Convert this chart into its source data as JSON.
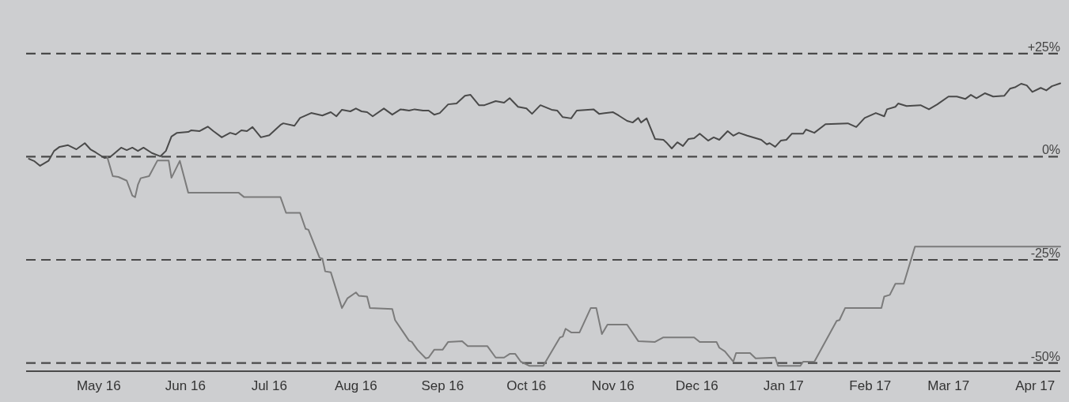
{
  "chart_data": {
    "type": "line",
    "xlim": [
      "2016-04-05",
      "2017-04-10"
    ],
    "ylim": [
      -52,
      38
    ],
    "xticks": [
      {
        "value": "2016-05-01",
        "label": "May 16"
      },
      {
        "value": "2016-06-01",
        "label": "Jun 16"
      },
      {
        "value": "2016-07-01",
        "label": "Jul 16"
      },
      {
        "value": "2016-08-01",
        "label": "Aug 16"
      },
      {
        "value": "2016-09-01",
        "label": "Sep 16"
      },
      {
        "value": "2016-10-01",
        "label": "Oct 16"
      },
      {
        "value": "2016-11-01",
        "label": "Nov 16"
      },
      {
        "value": "2016-12-01",
        "label": "Dec 16"
      },
      {
        "value": "2017-01-01",
        "label": "Jan 17"
      },
      {
        "value": "2017-02-01",
        "label": "Feb 17"
      },
      {
        "value": "2017-03-01",
        "label": "Mar 17"
      },
      {
        "value": "2017-04-01",
        "label": "Apr 17"
      }
    ],
    "yticks": [
      {
        "value": 25,
        "label": "+25%"
      },
      {
        "value": 0,
        "label": "0%"
      },
      {
        "value": -25,
        "label": "-25%"
      },
      {
        "value": -50,
        "label": "-50%"
      }
    ],
    "grid": "y",
    "series": [
      {
        "color": "#4a4a4a",
        "x": [
          "2016-04-06",
          "2016-04-08",
          "2016-04-10",
          "2016-04-13",
          "2016-04-15",
          "2016-04-17",
          "2016-04-20",
          "2016-04-23",
          "2016-04-26",
          "2016-04-28",
          "2016-04-30",
          "2016-05-03",
          "2016-05-05",
          "2016-05-09",
          "2016-05-11",
          "2016-05-13",
          "2016-05-15",
          "2016-05-17",
          "2016-05-20",
          "2016-05-23",
          "2016-05-25",
          "2016-05-27",
          "2016-05-29",
          "2016-06-02",
          "2016-06-03",
          "2016-06-06",
          "2016-06-09",
          "2016-06-11",
          "2016-06-14",
          "2016-06-17",
          "2016-06-19",
          "2016-06-21",
          "2016-06-23",
          "2016-06-25",
          "2016-06-28",
          "2016-07-01",
          "2016-07-05",
          "2016-07-06",
          "2016-07-10",
          "2016-07-12",
          "2016-07-16",
          "2016-07-20",
          "2016-07-23",
          "2016-07-25",
          "2016-07-27",
          "2016-07-30",
          "2016-08-01",
          "2016-08-03",
          "2016-08-05",
          "2016-08-07",
          "2016-08-11",
          "2016-08-14",
          "2016-08-17",
          "2016-08-20",
          "2016-08-22",
          "2016-08-25",
          "2016-08-27",
          "2016-08-29",
          "2016-08-31",
          "2016-09-03",
          "2016-09-06",
          "2016-09-09",
          "2016-09-11",
          "2016-09-14",
          "2016-09-16",
          "2016-09-20",
          "2016-09-23",
          "2016-09-25",
          "2016-09-28",
          "2016-10-01",
          "2016-10-03",
          "2016-10-06",
          "2016-10-10",
          "2016-10-12",
          "2016-10-14",
          "2016-10-17",
          "2016-10-19",
          "2016-10-25",
          "2016-10-27",
          "2016-11-01",
          "2016-11-03",
          "2016-11-06",
          "2016-11-08",
          "2016-11-10",
          "2016-11-11",
          "2016-11-13",
          "2016-11-16",
          "2016-11-19",
          "2016-11-20",
          "2016-11-22",
          "2016-11-24",
          "2016-11-26",
          "2016-11-28",
          "2016-11-30",
          "2016-12-02",
          "2016-12-05",
          "2016-12-07",
          "2016-12-09",
          "2016-12-12",
          "2016-12-14",
          "2016-12-16",
          "2016-12-19",
          "2016-12-24",
          "2016-12-26",
          "2016-12-27",
          "2016-12-29",
          "2016-12-31",
          "2017-01-02",
          "2017-01-04",
          "2017-01-08",
          "2017-01-09",
          "2017-01-12",
          "2017-01-16",
          "2017-01-24",
          "2017-01-27",
          "2017-01-30",
          "2017-02-03",
          "2017-02-06",
          "2017-02-07",
          "2017-02-10",
          "2017-02-11",
          "2017-02-14",
          "2017-02-19",
          "2017-02-22",
          "2017-02-25",
          "2017-03-01",
          "2017-03-04",
          "2017-03-07",
          "2017-03-09",
          "2017-03-11",
          "2017-03-14",
          "2017-03-17",
          "2017-03-21",
          "2017-03-23",
          "2017-03-25",
          "2017-03-27",
          "2017-03-29",
          "2017-03-31",
          "2017-04-03",
          "2017-04-05",
          "2017-04-07",
          "2017-04-10"
        ],
        "values": [
          -0.5,
          -1.1,
          -2.2,
          -1.0,
          1.4,
          2.4,
          2.8,
          1.8,
          3.3,
          1.8,
          1.0,
          -0.3,
          -0.1,
          2.2,
          1.6,
          2.2,
          1.4,
          2.2,
          0.9,
          0.1,
          1.4,
          4.9,
          5.8,
          6.0,
          6.4,
          6.2,
          7.3,
          6.2,
          4.7,
          5.8,
          5.4,
          6.4,
          6.2,
          7.2,
          4.7,
          5.2,
          7.7,
          8.1,
          7.5,
          9.4,
          10.6,
          10.0,
          10.8,
          9.8,
          11.4,
          11.0,
          11.7,
          11.0,
          10.8,
          9.8,
          11.7,
          10.2,
          11.5,
          11.2,
          11.5,
          11.2,
          11.2,
          10.2,
          10.6,
          12.7,
          12.9,
          14.8,
          15.0,
          12.5,
          12.5,
          13.5,
          13.1,
          14.2,
          12.1,
          11.7,
          10.4,
          12.5,
          11.4,
          11.2,
          9.6,
          9.3,
          11.2,
          11.5,
          10.4,
          10.8,
          10.0,
          8.7,
          8.3,
          9.4,
          8.3,
          9.3,
          4.3,
          4.1,
          3.5,
          2.0,
          3.5,
          2.6,
          4.3,
          4.5,
          5.6,
          3.9,
          4.7,
          4.1,
          6.2,
          5.1,
          5.8,
          5.1,
          4.1,
          3.0,
          3.3,
          2.4,
          3.9,
          4.1,
          5.6,
          5.6,
          6.6,
          5.8,
          7.9,
          8.1,
          7.2,
          9.4,
          10.6,
          9.8,
          11.5,
          12.1,
          12.9,
          12.3,
          12.5,
          11.5,
          12.7,
          14.6,
          14.6,
          14.0,
          15.0,
          14.2,
          15.4,
          14.6,
          14.8,
          16.5,
          16.9,
          17.7,
          17.3,
          15.7,
          16.7,
          16.1,
          17.1,
          17.8
        ]
      },
      {
        "color": "#7b7b7b",
        "x": [
          "2016-05-04",
          "2016-05-06",
          "2016-05-08",
          "2016-05-11",
          "2016-05-13",
          "2016-05-14",
          "2016-05-15",
          "2016-05-16",
          "2016-05-19",
          "2016-05-22",
          "2016-05-26",
          "2016-05-27",
          "2016-05-30",
          "2016-06-02",
          "2016-06-20",
          "2016-06-22",
          "2016-07-05",
          "2016-07-07",
          "2016-07-12",
          "2016-07-14",
          "2016-07-15",
          "2016-07-19",
          "2016-07-20",
          "2016-07-21",
          "2016-07-23",
          "2016-07-27",
          "2016-07-29",
          "2016-08-01",
          "2016-08-02",
          "2016-08-05",
          "2016-08-06",
          "2016-08-14",
          "2016-08-15",
          "2016-08-20",
          "2016-08-21",
          "2016-08-23",
          "2016-08-26",
          "2016-08-27",
          "2016-08-29",
          "2016-09-01",
          "2016-09-03",
          "2016-09-08",
          "2016-09-10",
          "2016-09-17",
          "2016-09-20",
          "2016-09-23",
          "2016-09-25",
          "2016-09-27",
          "2016-09-29",
          "2016-10-02",
          "2016-10-07",
          "2016-10-13",
          "2016-10-14",
          "2016-10-15",
          "2016-10-17",
          "2016-10-20",
          "2016-10-24",
          "2016-10-26",
          "2016-10-28",
          "2016-10-30",
          "2016-11-06",
          "2016-11-10",
          "2016-11-16",
          "2016-11-19",
          "2016-11-30",
          "2016-12-02",
          "2016-12-08",
          "2016-12-09",
          "2016-12-11",
          "2016-12-14",
          "2016-12-15",
          "2016-12-20",
          "2016-12-22",
          "2016-12-29",
          "2016-12-30",
          "2017-01-07",
          "2017-01-08",
          "2017-01-12",
          "2017-01-20",
          "2017-01-21",
          "2017-01-23",
          "2017-02-05",
          "2017-02-06",
          "2017-02-08",
          "2017-02-10",
          "2017-02-13",
          "2017-02-17",
          "2017-04-10"
        ],
        "values": [
          0,
          -4.7,
          -4.9,
          -5.8,
          -9.4,
          -9.8,
          -6.8,
          -5.2,
          -4.7,
          -0.9,
          -0.9,
          -5.1,
          -1.0,
          -8.7,
          -8.7,
          -9.8,
          -9.8,
          -13.6,
          -13.6,
          -17.5,
          -17.7,
          -24.5,
          -24.7,
          -27.8,
          -28.0,
          -36.7,
          -34.3,
          -32.9,
          -33.7,
          -33.9,
          -36.7,
          -36.9,
          -39.6,
          -44.6,
          -44.9,
          -46.8,
          -48.9,
          -48.7,
          -46.8,
          -46.8,
          -44.9,
          -44.7,
          -45.9,
          -45.9,
          -48.7,
          -48.7,
          -47.8,
          -47.8,
          -49.7,
          -50.7,
          -50.7,
          -43.8,
          -43.6,
          -41.7,
          -42.6,
          -42.6,
          -36.7,
          -36.7,
          -43.0,
          -40.7,
          -40.7,
          -44.7,
          -44.9,
          -43.8,
          -43.8,
          -44.9,
          -44.9,
          -46.3,
          -47.2,
          -49.7,
          -47.6,
          -47.6,
          -48.9,
          -48.7,
          -50.7,
          -50.7,
          -49.7,
          -49.7,
          -39.8,
          -39.6,
          -36.7,
          -36.7,
          -33.9,
          -33.5,
          -30.8,
          -30.8,
          -21.8,
          -21.8
        ]
      }
    ]
  }
}
